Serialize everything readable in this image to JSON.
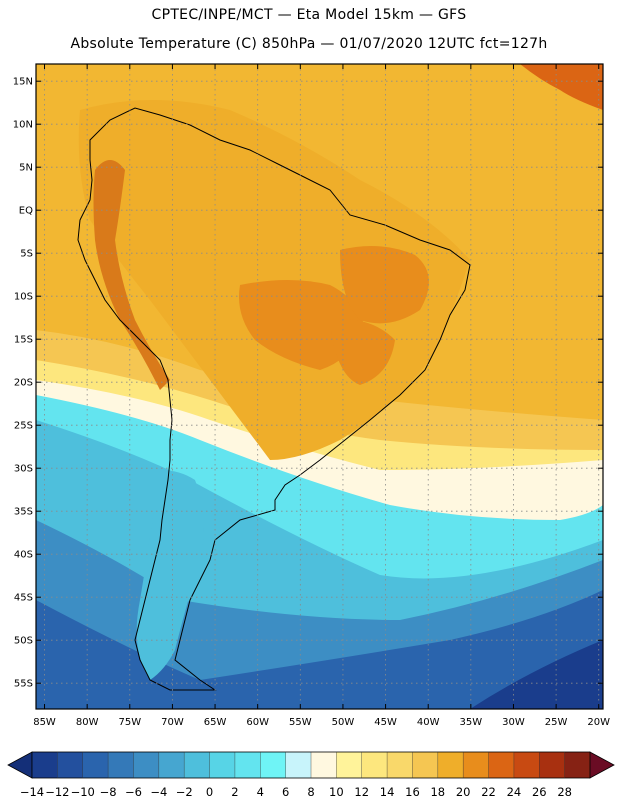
{
  "header": {
    "line1": "CPTEC/INPE/MCT —  Eta Model 15km — GFS",
    "line2": "Absolute Temperature (C) 850hPa — 01/07/2020 12UTC fct=127h"
  },
  "map": {
    "lon_range": [
      -86,
      -19.5
    ],
    "lat_range": [
      -58,
      17
    ],
    "lat_ticks": [
      {
        "value": 15,
        "label": "15N"
      },
      {
        "value": 10,
        "label": "10N"
      },
      {
        "value": 5,
        "label": "5N"
      },
      {
        "value": 0,
        "label": "EQ"
      },
      {
        "value": -5,
        "label": "5S"
      },
      {
        "value": -10,
        "label": "10S"
      },
      {
        "value": -15,
        "label": "15S"
      },
      {
        "value": -20,
        "label": "20S"
      },
      {
        "value": -25,
        "label": "25S"
      },
      {
        "value": -30,
        "label": "30S"
      },
      {
        "value": -35,
        "label": "35S"
      },
      {
        "value": -40,
        "label": "40S"
      },
      {
        "value": -45,
        "label": "45S"
      },
      {
        "value": -50,
        "label": "50S"
      },
      {
        "value": -55,
        "label": "55S"
      }
    ],
    "lon_ticks": [
      {
        "value": -85,
        "label": "85W"
      },
      {
        "value": -80,
        "label": "80W"
      },
      {
        "value": -75,
        "label": "75W"
      },
      {
        "value": -70,
        "label": "70W"
      },
      {
        "value": -65,
        "label": "65W"
      },
      {
        "value": -60,
        "label": "60W"
      },
      {
        "value": -55,
        "label": "55W"
      },
      {
        "value": -50,
        "label": "50W"
      },
      {
        "value": -45,
        "label": "45W"
      },
      {
        "value": -40,
        "label": "40W"
      },
      {
        "value": -35,
        "label": "35W"
      },
      {
        "value": -30,
        "label": "30W"
      },
      {
        "value": -25,
        "label": "25W"
      },
      {
        "value": -20,
        "label": "20W"
      }
    ],
    "grid": "dotted"
  },
  "colorbar": {
    "labels": [
      "−14",
      "−12",
      "−10",
      "−8",
      "−6",
      "−4",
      "−2",
      "0",
      "2",
      "4",
      "6",
      "8",
      "10",
      "12",
      "14",
      "16",
      "18",
      "20",
      "22",
      "24",
      "26",
      "28"
    ],
    "colors": [
      "#1a3d8c",
      "#23509e",
      "#2a64ad",
      "#3479b8",
      "#3d8ec4",
      "#46a6d0",
      "#4ebfdc",
      "#57d4e6",
      "#63e4ef",
      "#6ff4f6",
      "#c8f4fb",
      "#fff8e0",
      "#fff39a",
      "#fde77e",
      "#f9d86a",
      "#f5c652",
      "#efae2a",
      "#e88d1c",
      "#db6514",
      "#c84a12",
      "#a83010",
      "#862214"
    ],
    "under_color": "#142f78",
    "over_color": "#6a0c24"
  },
  "field": {
    "regions": [
      {
        "name": "ocean-south-deep",
        "color": "#1a3d8c"
      },
      {
        "name": "ocean-south",
        "color": "#2a64ad"
      },
      {
        "name": "band-blue",
        "color": "#3d8ec4"
      },
      {
        "name": "band-cyan",
        "color": "#4ebfdc"
      },
      {
        "name": "band-lightcyan",
        "color": "#63e4ef"
      },
      {
        "name": "band-cream",
        "color": "#fff8e0"
      },
      {
        "name": "band-yellow",
        "color": "#fde77e"
      },
      {
        "name": "band-orange",
        "color": "#f5c652"
      },
      {
        "name": "continent-warm",
        "color": "#efae2a"
      },
      {
        "name": "tropics",
        "color": "#f2b732"
      },
      {
        "name": "interior-hot",
        "color": "#e88d1c"
      },
      {
        "name": "andes-cold",
        "color": "#d97a1a"
      },
      {
        "name": "ne-corner-hot",
        "color": "#db6514"
      }
    ]
  }
}
